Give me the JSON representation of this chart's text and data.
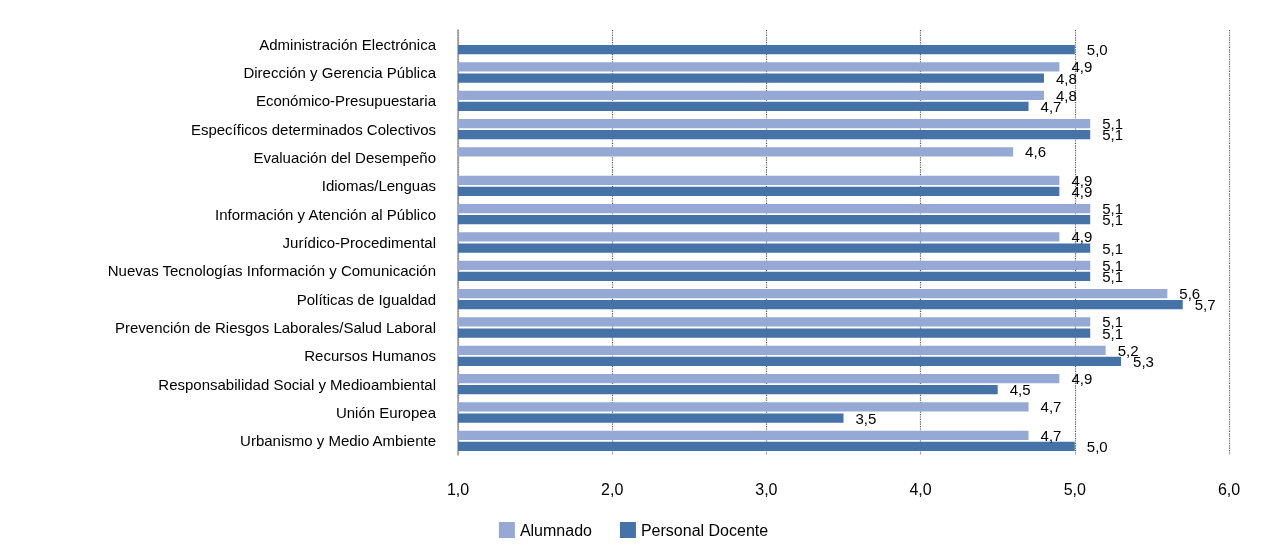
{
  "chart_data": {
    "type": "bar",
    "orientation": "horizontal",
    "categories": [
      "Administración Electrónica",
      "Dirección y Gerencia Pública",
      "Económico-Presupuestaria",
      "Específicos determinados Colectivos",
      "Evaluación del Desempeño",
      "Idiomas/Lenguas",
      "Información y Atención al Público",
      "Jurídico-Procedimental",
      "Nuevas Tecnologías Información y Comunicación",
      "Políticas de Igualdad",
      "Prevención de Riesgos Laborales/Salud Laboral",
      "Recursos Humanos",
      "Responsabilidad Social y Medioambiental",
      "Unión Europea",
      "Urbanismo y Medio Ambiente"
    ],
    "series": [
      {
        "name": "Alumnado",
        "color": "#95a9d4",
        "values": [
          null,
          4.9,
          4.8,
          5.1,
          4.6,
          4.9,
          5.1,
          4.9,
          5.1,
          5.6,
          5.1,
          5.2,
          4.9,
          4.7,
          4.7
        ],
        "value_labels": [
          null,
          "4,9",
          "4,8",
          "5,1",
          "4,6",
          "4,9",
          "5,1",
          "4,9",
          "5,1",
          "5,6",
          "5,1",
          "5,2",
          "4,9",
          "4,7",
          "4,7"
        ]
      },
      {
        "name": "Personal Docente",
        "color": "#4572a7",
        "values": [
          5.0,
          4.8,
          4.7,
          5.1,
          null,
          4.9,
          5.1,
          5.1,
          5.1,
          5.7,
          5.1,
          5.3,
          4.5,
          3.5,
          5.0
        ],
        "value_labels": [
          "5,0",
          "4,8",
          "4,7",
          "5,1",
          null,
          "4,9",
          "5,1",
          "5,1",
          "5,1",
          "5,7",
          "5,1",
          "5,3",
          "4,5",
          "3,5",
          "5,0"
        ]
      }
    ],
    "xlim": [
      1,
      6
    ],
    "xticks": [
      {
        "value": 1,
        "label": "1,0"
      },
      {
        "value": 2,
        "label": "2,0"
      },
      {
        "value": 3,
        "label": "3,0"
      },
      {
        "value": 4,
        "label": "4,0"
      },
      {
        "value": 5,
        "label": "5,0"
      },
      {
        "value": 6,
        "label": "6,0"
      }
    ],
    "grid": "x",
    "legend": "bottom"
  }
}
